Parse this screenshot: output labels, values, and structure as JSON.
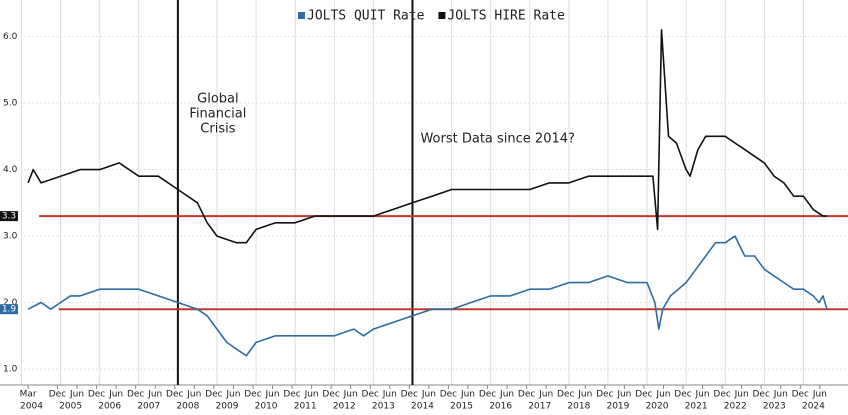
{
  "chart_data": {
    "type": "line",
    "xlim": [
      2003.45,
      2025.14
    ],
    "ylim": [
      0.76,
      6.55
    ],
    "yticks": [
      {
        "value": 1,
        "label": "1.0"
      },
      {
        "value": 2,
        "label": "2.0"
      },
      {
        "value": 3,
        "label": "3.0"
      },
      {
        "value": 4,
        "label": "4.0"
      },
      {
        "value": 5,
        "label": "5.0"
      },
      {
        "value": 6,
        "label": "6.0"
      }
    ],
    "xticks": [
      2004,
      2005,
      2006,
      2007,
      2008,
      2009,
      2010,
      2011,
      2012,
      2013,
      2014,
      2015,
      2016,
      2017,
      2018,
      2019,
      2020,
      2021,
      2022,
      2023,
      2024
    ],
    "month_ticks": [
      {
        "value": 2004.17,
        "label": "Mar"
      },
      {
        "value": 2004.92,
        "label": "Dec"
      },
      {
        "value": 2005.42,
        "label": "Jun"
      },
      {
        "value": 2005.92,
        "label": "Dec"
      },
      {
        "value": 2006.42,
        "label": "Jun"
      },
      {
        "value": 2006.92,
        "label": "Dec"
      },
      {
        "value": 2007.42,
        "label": "Jun"
      },
      {
        "value": 2007.92,
        "label": "Dec"
      },
      {
        "value": 2008.42,
        "label": "Jun"
      },
      {
        "value": 2008.92,
        "label": "Dec"
      },
      {
        "value": 2009.42,
        "label": "Jun"
      },
      {
        "value": 2009.92,
        "label": "Dec"
      },
      {
        "value": 2010.42,
        "label": "Jun"
      },
      {
        "value": 2010.92,
        "label": "Dec"
      },
      {
        "value": 2011.42,
        "label": "Jun"
      },
      {
        "value": 2011.92,
        "label": "Dec"
      },
      {
        "value": 2012.42,
        "label": "Jun"
      },
      {
        "value": 2012.92,
        "label": "Dec"
      },
      {
        "value": 2013.42,
        "label": "Jun"
      },
      {
        "value": 2013.92,
        "label": "Dec"
      },
      {
        "value": 2014.42,
        "label": "Jun"
      },
      {
        "value": 2014.92,
        "label": "Dec"
      },
      {
        "value": 2015.42,
        "label": "Jun"
      },
      {
        "value": 2015.92,
        "label": "Dec"
      },
      {
        "value": 2016.42,
        "label": "Jun"
      },
      {
        "value": 2016.92,
        "label": "Dec"
      },
      {
        "value": 2017.42,
        "label": "Jun"
      },
      {
        "value": 2017.92,
        "label": "Dec"
      },
      {
        "value": 2018.42,
        "label": "Jun"
      },
      {
        "value": 2018.92,
        "label": "Dec"
      },
      {
        "value": 2019.42,
        "label": "Jun"
      },
      {
        "value": 2019.92,
        "label": "Dec"
      },
      {
        "value": 2020.42,
        "label": "Jun"
      },
      {
        "value": 2020.92,
        "label": "Dec"
      },
      {
        "value": 2021.42,
        "label": "Jun"
      },
      {
        "value": 2021.92,
        "label": "Dec"
      },
      {
        "value": 2022.42,
        "label": "Jun"
      },
      {
        "value": 2022.92,
        "label": "Dec"
      },
      {
        "value": 2023.42,
        "label": "Jun"
      },
      {
        "value": 2023.92,
        "label": "Dec"
      },
      {
        "value": 2024.42,
        "label": "Jun"
      }
    ],
    "grid": true,
    "series": [
      {
        "name": "JOLTS QUIT Rate",
        "color": "#2e6da4",
        "x": [
          2004.17,
          2004.5,
          2004.75,
          2005.0,
          2005.25,
          2005.5,
          2006.0,
          2006.5,
          2007.0,
          2007.5,
          2008.0,
          2008.5,
          2008.75,
          2009.0,
          2009.25,
          2009.5,
          2009.75,
          2010.0,
          2010.5,
          2011.0,
          2011.5,
          2012.0,
          2012.5,
          2012.75,
          2013.0,
          2013.5,
          2014.0,
          2014.5,
          2015.0,
          2015.5,
          2016.0,
          2016.5,
          2017.0,
          2017.5,
          2018.0,
          2018.5,
          2019.0,
          2019.5,
          2020.0,
          2020.2,
          2020.3,
          2020.4,
          2020.6,
          2021.0,
          2021.25,
          2021.5,
          2021.75,
          2022.0,
          2022.25,
          2022.5,
          2022.75,
          2023.0,
          2023.25,
          2023.5,
          2023.75,
          2024.0,
          2024.25,
          2024.4,
          2024.5,
          2024.6
        ],
        "values": [
          1.9,
          2.0,
          1.9,
          2.0,
          2.1,
          2.1,
          2.2,
          2.2,
          2.2,
          2.1,
          2.0,
          1.9,
          1.8,
          1.6,
          1.4,
          1.3,
          1.2,
          1.4,
          1.5,
          1.5,
          1.5,
          1.5,
          1.6,
          1.5,
          1.6,
          1.7,
          1.8,
          1.9,
          1.9,
          2.0,
          2.1,
          2.1,
          2.2,
          2.2,
          2.3,
          2.3,
          2.4,
          2.3,
          2.3,
          2.0,
          1.6,
          1.9,
          2.1,
          2.3,
          2.5,
          2.7,
          2.9,
          2.9,
          3.0,
          2.7,
          2.7,
          2.5,
          2.4,
          2.3,
          2.2,
          2.2,
          2.1,
          2.0,
          2.1,
          1.9
        ]
      },
      {
        "name": "JOLTS HIRE Rate",
        "color": "#111111",
        "x": [
          2004.17,
          2004.3,
          2004.5,
          2005.0,
          2005.5,
          2006.0,
          2006.5,
          2007.0,
          2007.5,
          2008.0,
          2008.5,
          2008.75,
          2009.0,
          2009.5,
          2009.75,
          2010.0,
          2010.5,
          2011.0,
          2011.5,
          2012.0,
          2012.5,
          2013.0,
          2013.5,
          2014.0,
          2014.5,
          2015.0,
          2015.5,
          2016.0,
          2016.5,
          2017.0,
          2017.5,
          2018.0,
          2018.5,
          2019.0,
          2019.5,
          2020.0,
          2020.15,
          2020.27,
          2020.37,
          2020.45,
          2020.55,
          2020.75,
          2021.0,
          2021.1,
          2021.3,
          2021.5,
          2021.75,
          2022.0,
          2022.25,
          2022.5,
          2022.75,
          2023.0,
          2023.25,
          2023.5,
          2023.75,
          2024.0,
          2024.25,
          2024.5,
          2024.6
        ],
        "values": [
          3.8,
          4.0,
          3.8,
          3.9,
          4.0,
          4.0,
          4.1,
          3.9,
          3.9,
          3.7,
          3.5,
          3.2,
          3.0,
          2.9,
          2.9,
          3.1,
          3.2,
          3.2,
          3.3,
          3.3,
          3.3,
          3.3,
          3.4,
          3.5,
          3.6,
          3.7,
          3.7,
          3.7,
          3.7,
          3.7,
          3.8,
          3.8,
          3.9,
          3.9,
          3.9,
          3.9,
          3.9,
          3.1,
          6.1,
          5.4,
          4.5,
          4.4,
          4.0,
          3.9,
          4.3,
          4.5,
          4.5,
          4.5,
          4.4,
          4.3,
          4.2,
          4.1,
          3.9,
          3.8,
          3.6,
          3.6,
          3.4,
          3.3,
          3.3
        ]
      }
    ],
    "hlines": [
      {
        "value": 3.3,
        "from": 2004.45,
        "color": "#c0392b",
        "tag_color": "#111111"
      },
      {
        "value": 1.9,
        "from": 2004.95,
        "color": "#c0392b",
        "tag_color": "#2e6da4"
      }
    ],
    "vlines": [
      {
        "x": 2008.0,
        "label": [
          "Global",
          "Financial",
          "Crisis"
        ]
      },
      {
        "x": 2014.0,
        "label": [
          "Worst Data since 2014?"
        ]
      }
    ]
  }
}
